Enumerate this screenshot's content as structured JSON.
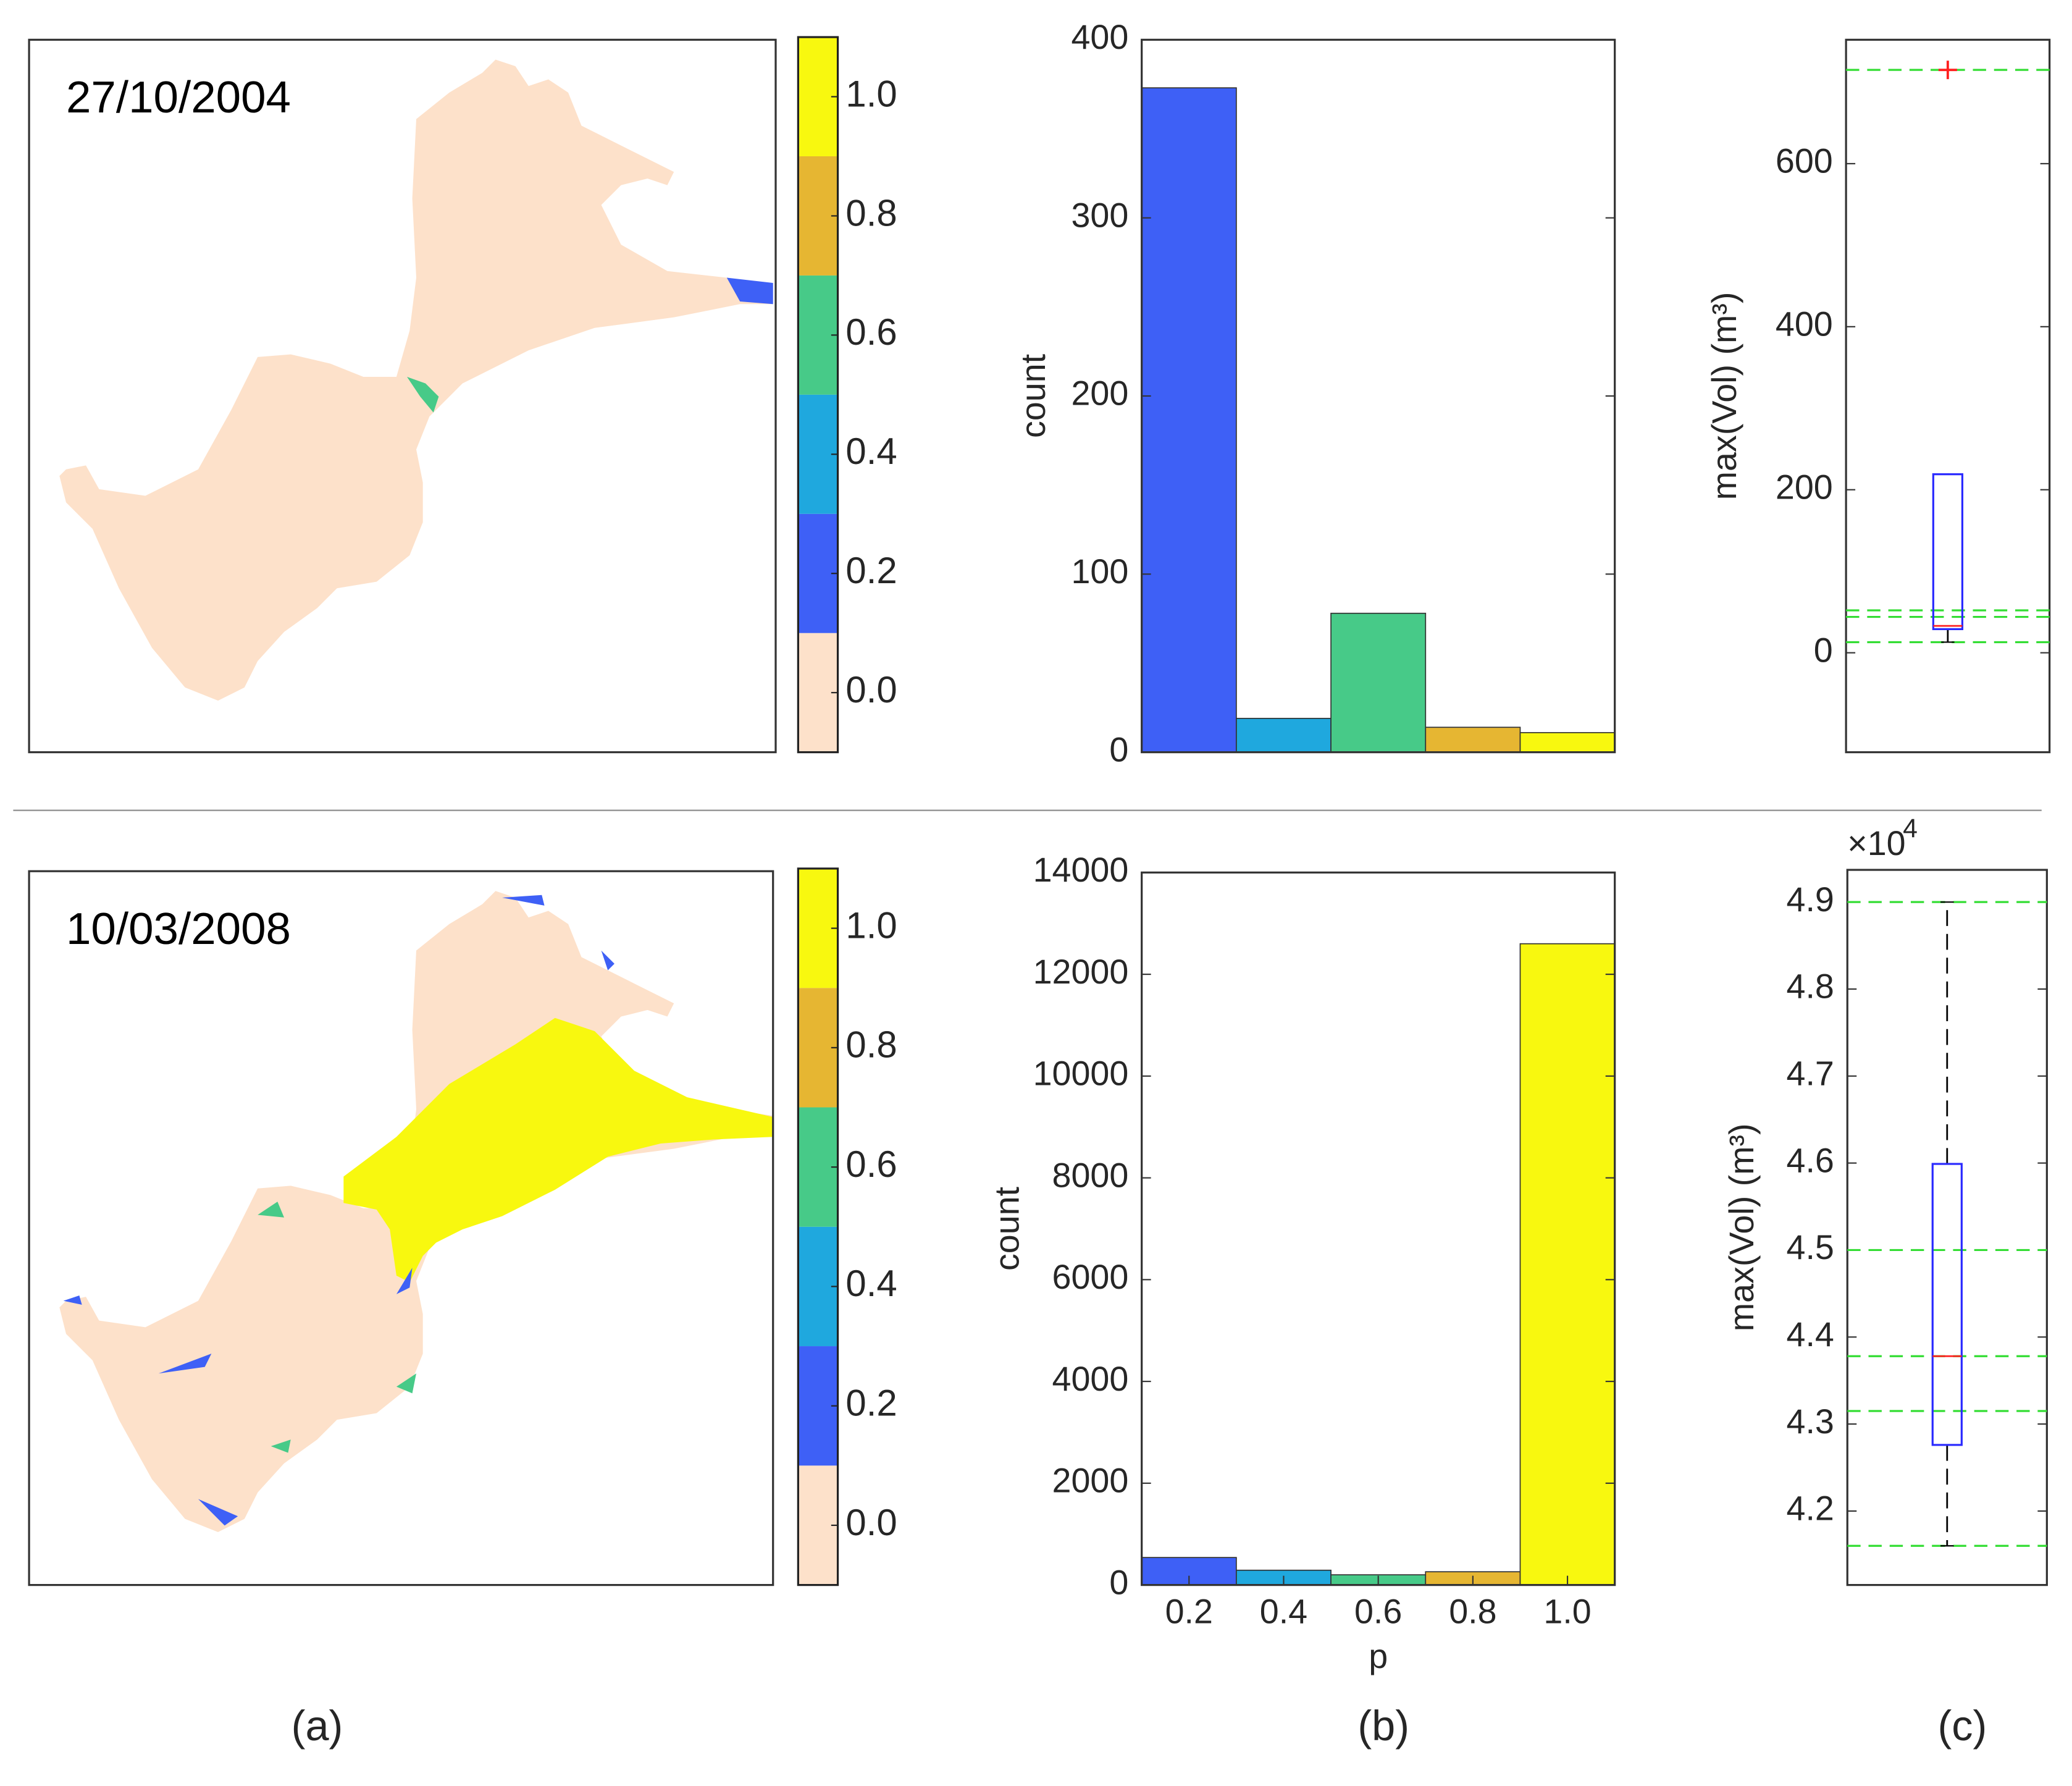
{
  "chart_data": [
    {
      "type": "map",
      "title": "27/10/2004",
      "colors": [
        "#fde1ca",
        "#3e60f6",
        "#1fa8de",
        "#47ca88",
        "#e6b632",
        "#f8f80f"
      ],
      "clim": [
        -0.1,
        1.1
      ],
      "cticks": [
        {
          "value": 0,
          "label": "0.0"
        },
        0.2,
        0.4,
        0.6,
        0.8,
        {
          "value": 1,
          "label": "1.0"
        }
      ]
    },
    {
      "type": "histogram",
      "ylabel": "count",
      "bins": [
        0.1,
        0.3,
        0.5,
        0.7,
        0.9,
        1.1
      ],
      "counts": [
        373,
        19,
        78,
        14,
        11
      ],
      "colors": [
        "#3e60f6",
        "#1fa8de",
        "#47ca88",
        "#e6b632",
        "#f8f80f"
      ],
      "xlim": [
        0.1,
        1.1
      ],
      "ylim": [
        0,
        400
      ],
      "yticks": [
        0,
        100,
        200,
        300,
        400
      ]
    },
    {
      "type": "box",
      "ylabel": "max(Vol) (m³)",
      "q1": 29,
      "median": 33,
      "q3": 219,
      "whisker_low": 13,
      "whisker_high": 219,
      "outliers": [
        715
      ],
      "ref_lines": [
        715,
        52,
        44,
        13
      ],
      "ylim": [
        -122,
        752
      ],
      "yticks": [
        0,
        200,
        400,
        600
      ]
    },
    {
      "type": "map",
      "title": "10/03/2008",
      "colors": [
        "#fde1ca",
        "#3e60f6",
        "#1fa8de",
        "#47ca88",
        "#e6b632",
        "#f8f80f"
      ],
      "clim": [
        -0.1,
        1.1
      ],
      "cticks": [
        {
          "value": 0,
          "label": "0.0"
        },
        0.2,
        0.4,
        0.6,
        0.8,
        {
          "value": 1,
          "label": "1.0"
        }
      ]
    },
    {
      "type": "histogram",
      "ylabel": "count",
      "xlabel": "p",
      "bins": [
        0.1,
        0.3,
        0.5,
        0.7,
        0.9,
        1.1
      ],
      "counts": [
        540,
        290,
        200,
        260,
        12600
      ],
      "colors": [
        "#3e60f6",
        "#1fa8de",
        "#47ca88",
        "#e6b632",
        "#f8f80f"
      ],
      "xlim": [
        0.1,
        1.1
      ],
      "xticks": [
        0.2,
        0.4,
        0.6,
        0.8,
        {
          "value": 1,
          "label": "1.0"
        }
      ],
      "ylim": [
        0,
        14000
      ],
      "yticks": [
        0,
        2000,
        4000,
        6000,
        8000,
        10000,
        12000,
        14000
      ]
    },
    {
      "type": "box",
      "ylabel": "max(Vol) (m³)",
      "multiplier": "×10",
      "multiplier_exp": "4",
      "q1": 4.276,
      "median": 4.378,
      "q3": 4.599,
      "whisker_low": 4.16,
      "whisker_high": 4.9,
      "outliers": [],
      "ref_lines": [
        4.9,
        4.5,
        4.378,
        4.315,
        4.16
      ],
      "ylim": [
        4.115,
        4.937
      ],
      "yticks": [
        4.2,
        4.3,
        4.4,
        4.5,
        4.6,
        4.7,
        4.8,
        4.9
      ]
    }
  ],
  "panel_labels": [
    "(a)",
    "(b)",
    "(c)"
  ]
}
